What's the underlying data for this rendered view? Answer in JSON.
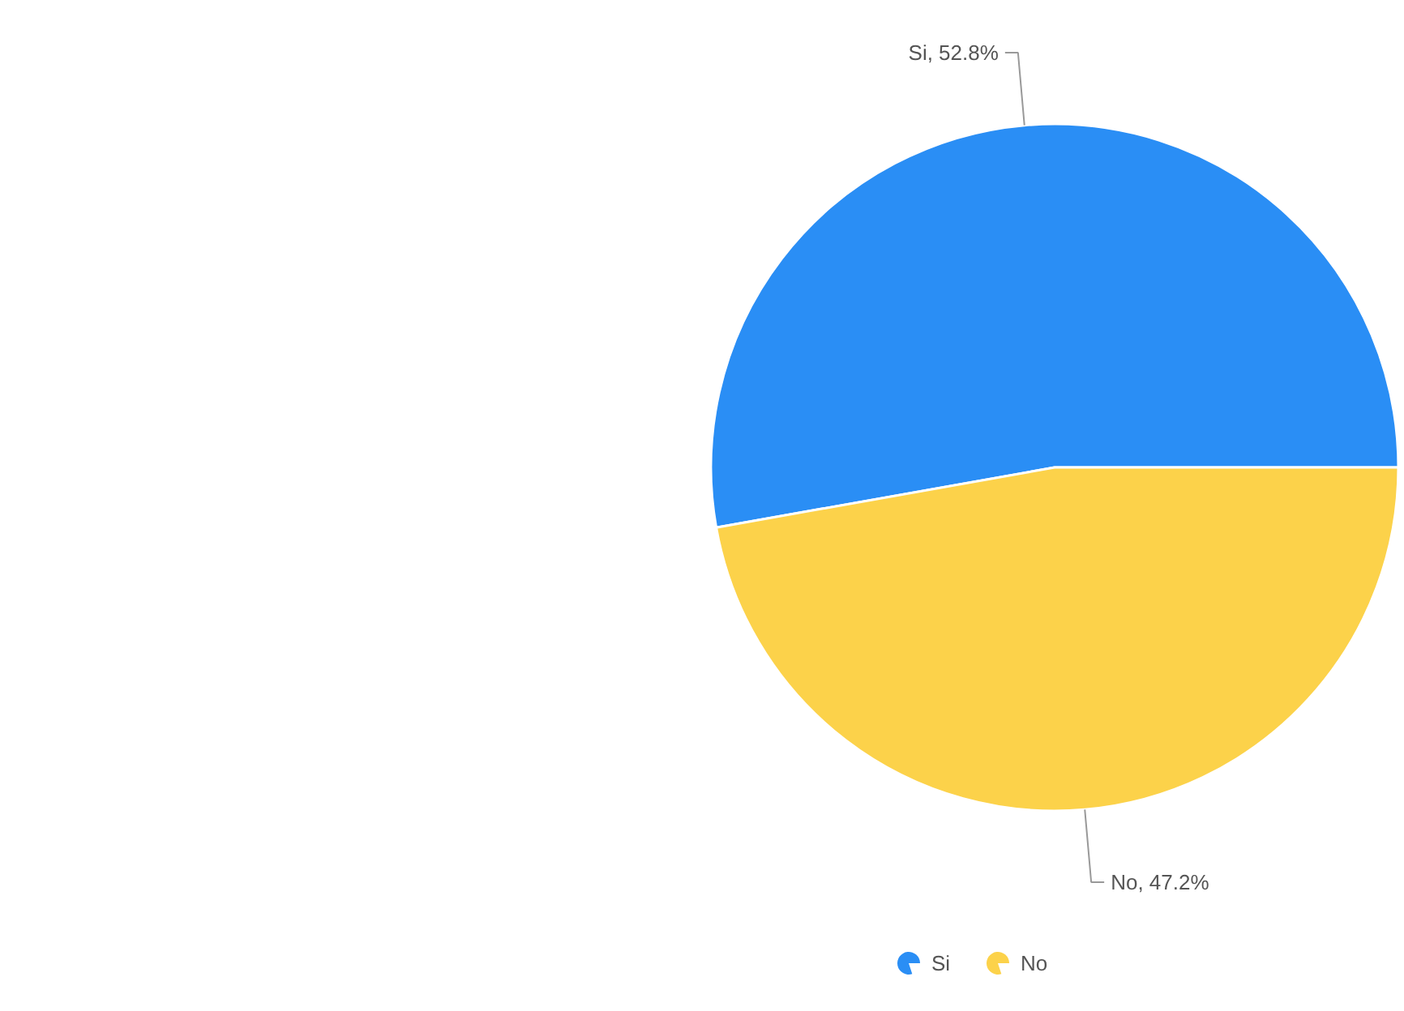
{
  "chart_data": {
    "type": "pie",
    "categories": [
      "Si",
      "No"
    ],
    "values": [
      52.8,
      47.2
    ],
    "colors": [
      "#2a8ef5",
      "#fcd24a"
    ],
    "value_labels": [
      "Si, 52.8%",
      "No, 47.2%"
    ],
    "legend": "bottom"
  }
}
